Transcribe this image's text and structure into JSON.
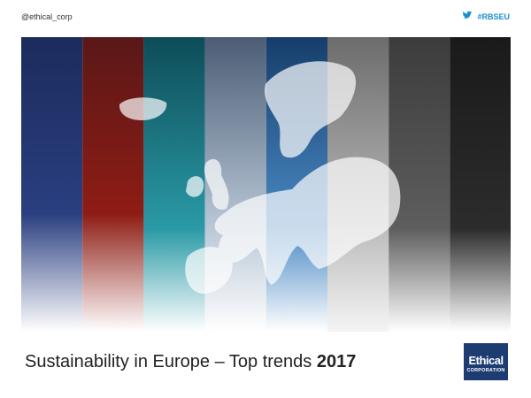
{
  "header": {
    "handle": "@ethical_corp",
    "hashtag": "#RBSEU"
  },
  "footer": {
    "title": "Sustainability in Europe – Top trends",
    "year": "2017",
    "logo": {
      "line1": "Ethical",
      "line2": "CORPORATION"
    }
  }
}
